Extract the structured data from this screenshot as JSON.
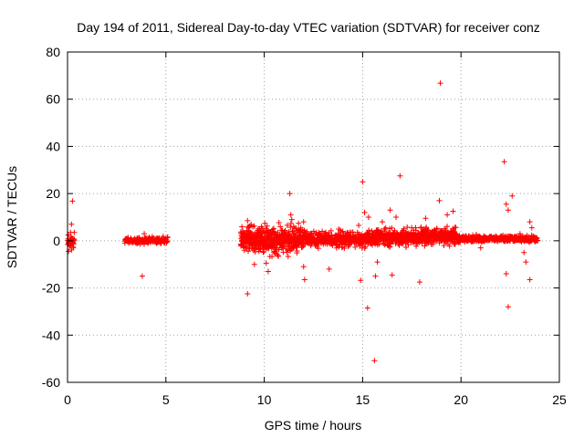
{
  "chart_data": {
    "type": "scatter",
    "title": "Day 194 of 2011, Sidereal Day-to-day VTEC variation (SDTVAR) for receiver conz",
    "xlabel": "GPS time / hours",
    "ylabel": "SDTVAR / TECUs",
    "xlim": [
      0,
      25
    ],
    "ylim": [
      -60,
      80
    ],
    "xticks": [
      0,
      5,
      10,
      15,
      20,
      25
    ],
    "yticks": [
      -60,
      -40,
      -20,
      0,
      20,
      40,
      60,
      80
    ],
    "xtick_labels": [
      "0",
      "5",
      "10",
      "15",
      "20",
      "25"
    ],
    "ytick_labels": [
      "-60",
      "-40",
      "-20",
      "0",
      "20",
      "40",
      "60",
      "80"
    ],
    "grid": true,
    "marker": "+",
    "color": "#ff0000",
    "series": [
      {
        "name": "SDTVAR",
        "clusters": [
          {
            "x_start": 0.0,
            "x_end": 0.35,
            "center": -0.5,
            "spread": 2.5,
            "count": 45
          },
          {
            "x_start": 2.9,
            "x_end": 5.1,
            "center": 0.0,
            "spread": 1.3,
            "count": 160
          },
          {
            "x_start": 8.8,
            "x_end": 12.0,
            "center": 0.5,
            "spread": 4.5,
            "count": 520
          },
          {
            "x_start": 12.0,
            "x_end": 15.5,
            "center": 0.5,
            "spread": 2.8,
            "count": 420
          },
          {
            "x_start": 15.5,
            "x_end": 18.0,
            "center": 1.5,
            "spread": 2.8,
            "count": 320
          },
          {
            "x_start": 18.0,
            "x_end": 19.8,
            "center": 2.0,
            "spread": 3.0,
            "count": 240
          },
          {
            "x_start": 19.8,
            "x_end": 23.9,
            "center": 0.8,
            "spread": 1.2,
            "count": 340
          }
        ],
        "outliers": [
          [
            0.25,
            16.8
          ],
          [
            0.2,
            7.0
          ],
          [
            0.15,
            3.5
          ],
          [
            0.3,
            -3.0
          ],
          [
            3.8,
            -15.0
          ],
          [
            3.9,
            3.0
          ],
          [
            9.15,
            8.5
          ],
          [
            9.15,
            -22.5
          ],
          [
            9.5,
            -10.0
          ],
          [
            10.1,
            -9.5
          ],
          [
            10.2,
            -13.0
          ],
          [
            11.3,
            20.0
          ],
          [
            11.35,
            11.0
          ],
          [
            11.4,
            9.0
          ],
          [
            11.6,
            2.5
          ],
          [
            12.0,
            -11.0
          ],
          [
            12.05,
            -16.5
          ],
          [
            12.0,
            8.0
          ],
          [
            13.3,
            -12.0
          ],
          [
            14.8,
            6.5
          ],
          [
            14.9,
            -16.8
          ],
          [
            15.0,
            25.0
          ],
          [
            15.1,
            12.0
          ],
          [
            15.3,
            10.0
          ],
          [
            15.25,
            -28.5
          ],
          [
            15.6,
            -50.8
          ],
          [
            15.65,
            -15.0
          ],
          [
            15.75,
            -9.0
          ],
          [
            16.0,
            8.0
          ],
          [
            16.4,
            13.0
          ],
          [
            16.5,
            -14.5
          ],
          [
            16.7,
            10.0
          ],
          [
            16.9,
            27.5
          ],
          [
            17.0,
            2.0
          ],
          [
            17.9,
            -17.5
          ],
          [
            18.2,
            9.5
          ],
          [
            18.95,
            66.8
          ],
          [
            18.9,
            17.0
          ],
          [
            19.3,
            11.0
          ],
          [
            19.6,
            12.5
          ],
          [
            21.0,
            -3.0
          ],
          [
            22.2,
            33.5
          ],
          [
            22.3,
            15.5
          ],
          [
            22.4,
            13.0
          ],
          [
            22.6,
            19.0
          ],
          [
            22.3,
            -14.0
          ],
          [
            22.4,
            -28.0
          ],
          [
            23.0,
            3.0
          ],
          [
            23.2,
            -5.0
          ],
          [
            23.3,
            -9.0
          ],
          [
            23.5,
            8.0
          ],
          [
            23.5,
            -16.5
          ],
          [
            23.6,
            5.5
          ]
        ]
      }
    ]
  }
}
